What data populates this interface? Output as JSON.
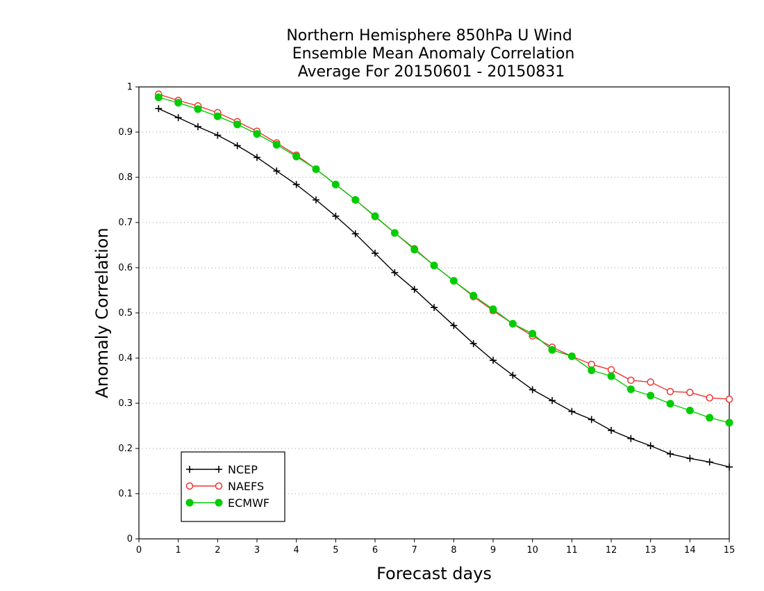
{
  "chart_data": {
    "type": "line",
    "title": [
      "Northern Hemisphere 850hPa U Wind",
      "Ensemble Mean Anomaly Correlation",
      "Average For 20150601 - 20150831"
    ],
    "xlabel": "Forecast days",
    "ylabel": "Anomaly Correlation",
    "xlim": [
      0,
      15
    ],
    "ylim": [
      0,
      1
    ],
    "x_ticks": [
      "0",
      "1",
      "2",
      "3",
      "4",
      "5",
      "6",
      "7",
      "8",
      "9",
      "10",
      "11",
      "12",
      "13",
      "14",
      "15"
    ],
    "y_ticks": [
      "0",
      "0.1",
      "0.2",
      "0.3",
      "0.4",
      "0.5",
      "0.6",
      "0.7",
      "0.8",
      "0.9",
      "1"
    ],
    "grid": "horizontal dotted",
    "legend_position": "bottom-left",
    "x": [
      0.5,
      1,
      1.5,
      2,
      2.5,
      3,
      3.5,
      4,
      4.5,
      5,
      5.5,
      6,
      6.5,
      7,
      7.5,
      8,
      8.5,
      9,
      9.5,
      10,
      10.5,
      11,
      11.5,
      12,
      12.5,
      13,
      13.5,
      14,
      14.5,
      15
    ],
    "series": [
      {
        "name": "NCEP",
        "color": "#000000",
        "marker": "plus",
        "values": [
          0.952,
          0.932,
          0.912,
          0.893,
          0.87,
          0.844,
          0.814,
          0.784,
          0.75,
          0.714,
          0.675,
          0.632,
          0.589,
          0.552,
          0.512,
          0.472,
          0.432,
          0.395,
          0.362,
          0.33,
          0.306,
          0.282,
          0.264,
          0.24,
          0.222,
          0.206,
          0.188,
          0.178,
          0.17,
          0.159
        ]
      },
      {
        "name": "NAEFS",
        "color": "#ee3333",
        "marker": "open-circle",
        "values": [
          0.984,
          0.97,
          0.958,
          0.943,
          0.923,
          0.902,
          0.876,
          0.849,
          0.818,
          0.784,
          0.75,
          0.713,
          0.677,
          0.642,
          0.605,
          0.571,
          0.536,
          0.505,
          0.476,
          0.449,
          0.424,
          0.404,
          0.386,
          0.374,
          0.351,
          0.347,
          0.326,
          0.324,
          0.312,
          0.309
        ]
      },
      {
        "name": "ECMWF",
        "color": "#00cc00",
        "marker": "filled-circle",
        "values": [
          0.977,
          0.965,
          0.951,
          0.935,
          0.917,
          0.896,
          0.872,
          0.846,
          0.818,
          0.784,
          0.75,
          0.714,
          0.677,
          0.64,
          0.605,
          0.571,
          0.538,
          0.508,
          0.476,
          0.454,
          0.418,
          0.404,
          0.373,
          0.36,
          0.331,
          0.317,
          0.299,
          0.284,
          0.268,
          0.257
        ]
      }
    ]
  }
}
